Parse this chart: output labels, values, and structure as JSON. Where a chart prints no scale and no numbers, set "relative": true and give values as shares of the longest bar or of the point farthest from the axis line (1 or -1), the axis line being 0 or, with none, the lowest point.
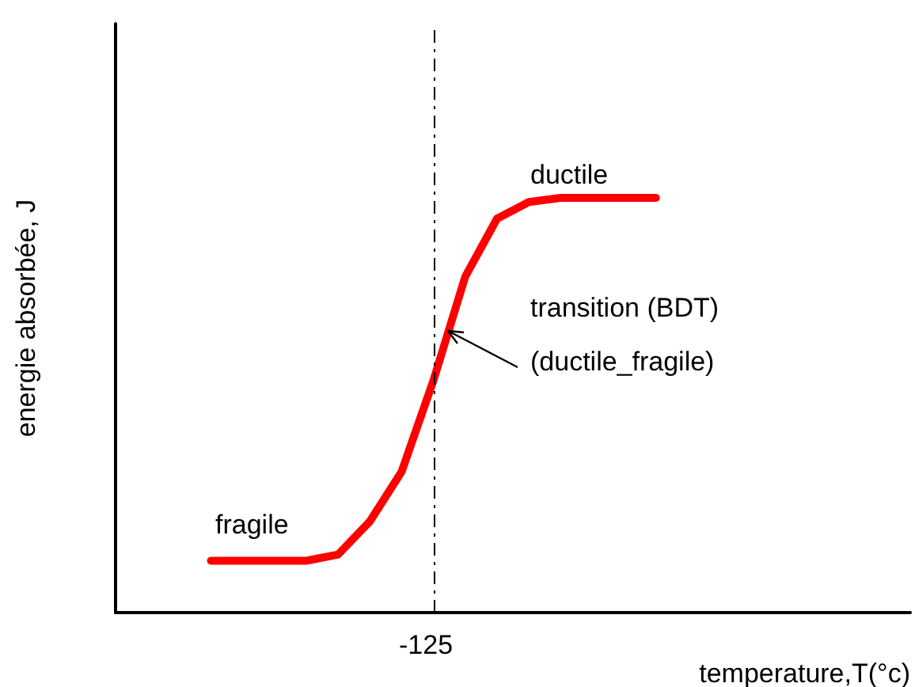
{
  "chart_data": {
    "type": "line",
    "relative": true,
    "xlabel": "temperature,T(°c)",
    "ylabel": "energie absorbée, J",
    "categories": [
      null,
      null,
      null,
      null,
      null,
      null,
      null,
      null,
      null,
      null,
      null,
      null,
      null,
      null,
      null,
      null,
      null,
      null,
      null,
      null,
      null,
      null,
      null,
      null,
      null,
      null
    ],
    "series": [
      {
        "color": "#ff0000",
        "values": [
          null,
          null,
          null,
          0.125,
          0.125,
          0.125,
          0.125,
          0.14,
          0.22,
          0.34,
          0.56,
          0.81,
          0.95,
          0.99,
          1,
          1,
          1,
          1,
          null,
          null,
          null,
          null,
          null,
          null,
          null,
          null
        ]
      }
    ],
    "annotations": [
      "ductile",
      "transition (BDT)",
      "(ductile_fragile)",
      "fragile",
      "-125"
    ],
    "marker": "none",
    "line_style": "solid",
    "grid": false
  }
}
